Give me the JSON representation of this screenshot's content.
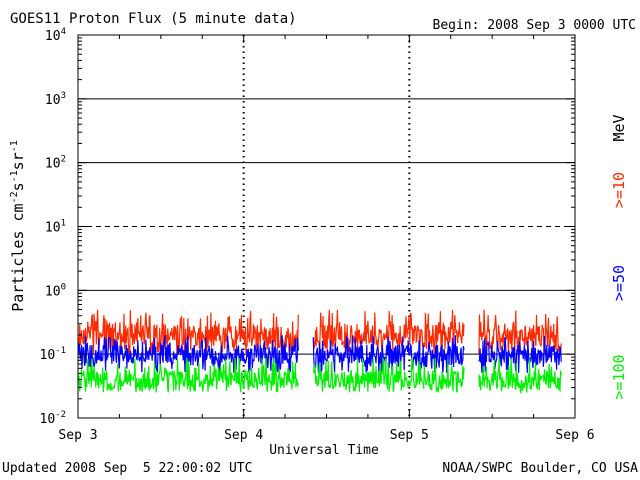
{
  "header": {
    "title": "GOES11 Proton Flux (5 minute data)",
    "begin": "Begin: 2008 Sep 3 0000 UTC"
  },
  "footer": {
    "updated": "Updated 2008 Sep  5 22:00:02 UTC",
    "credit": "NOAA/SWPC Boulder, CO USA"
  },
  "chart_data": {
    "type": "line",
    "title": "GOES11 Proton Flux (5 minute data)",
    "xlabel": "Universal Time",
    "ylabel": "Particles cm-2s-1sr-1",
    "y_scale": "log",
    "ylim": [
      0.01,
      10000
    ],
    "xlim": [
      "2008-09-03 00:00",
      "2008-09-06 00:00"
    ],
    "x_ticks": [
      "Sep 3",
      "Sep 4",
      "Sep 5",
      "Sep 6"
    ],
    "y_ticks": [
      {
        "base": "10",
        "exp": "-2"
      },
      {
        "base": "10",
        "exp": "-1"
      },
      {
        "base": "10",
        "exp": "0"
      },
      {
        "base": "10",
        "exp": "1"
      },
      {
        "base": "10",
        "exp": "2"
      },
      {
        "base": "10",
        "exp": "3"
      },
      {
        "base": "10",
        "exp": "4"
      }
    ],
    "reference_lines": {
      "solid": [
        0.1,
        1,
        100,
        1000
      ],
      "dashed": [
        10
      ]
    },
    "unit_label": "MeV",
    "data_gaps": [
      [
        "2008-09-04 08:00",
        "2008-09-04 10:00"
      ],
      [
        "2008-09-05 08:00",
        "2008-09-05 10:00"
      ]
    ],
    "series": [
      {
        "name": ">=10",
        "color": "#ff2a00",
        "typical": 0.2,
        "range": [
          0.1,
          0.5
        ]
      },
      {
        "name": ">=50",
        "color": "#0000ff",
        "typical": 0.1,
        "range": [
          0.05,
          0.2
        ]
      },
      {
        "name": ">=100",
        "color": "#00ee00",
        "typical": 0.04,
        "range": [
          0.025,
          0.09
        ]
      }
    ]
  }
}
